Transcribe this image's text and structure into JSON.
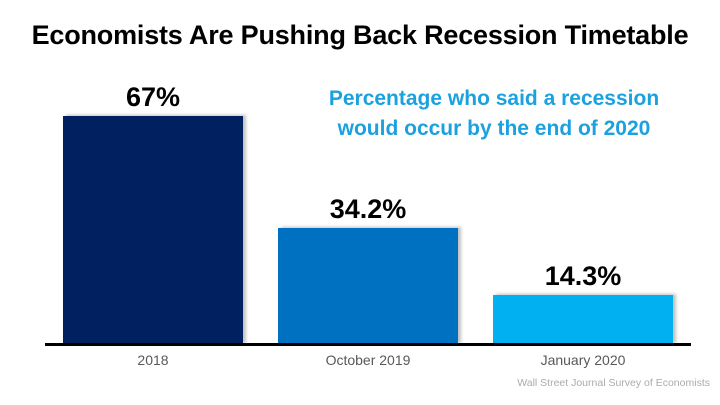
{
  "title": "Economists Are Pushing Back Recession Timetable",
  "subtitle": {
    "line1": "Percentage who said a recession",
    "line2": "would occur by the end of 2020",
    "color": "#1BA2DE"
  },
  "source": "Wall Street Journal Survey of Economists",
  "chart_data": {
    "type": "bar",
    "title": "Economists Are Pushing Back Recession Timetable",
    "subtitle": "Percentage who said a recession would occur by the end of 2020",
    "categories": [
      "2018",
      "October 2019",
      "January 2020"
    ],
    "values": [
      67,
      34.2,
      14.3
    ],
    "value_labels": [
      "67%",
      "34.2%",
      "14.3%"
    ],
    "bar_colors": [
      "#002060",
      "#0070C0",
      "#00B0F0"
    ],
    "ylabel": "",
    "xlabel": "",
    "ylim": [
      0,
      70
    ],
    "grid": false,
    "legend": false,
    "baseline_color": "#000000",
    "source": "Wall Street Journal Survey of Economists"
  }
}
